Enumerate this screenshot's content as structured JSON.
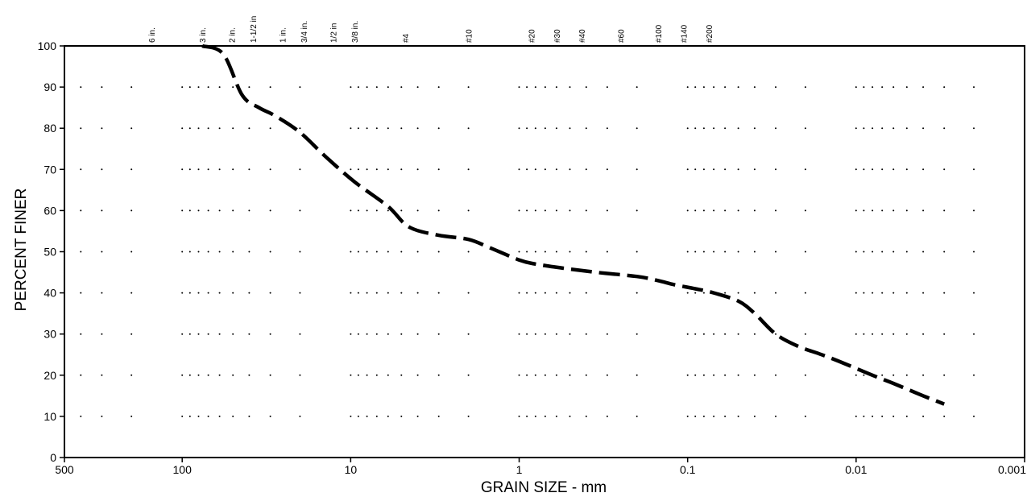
{
  "chart_data": {
    "type": "line",
    "title": "",
    "xlabel": "GRAIN SIZE - mm",
    "ylabel": "PERCENT FINER",
    "x_scale": "log",
    "x_reversed": true,
    "xlim": [
      500,
      0.001
    ],
    "ylim": [
      0,
      100
    ],
    "xticks": [
      {
        "value": 500,
        "label": "500"
      },
      {
        "value": 100,
        "label": "100"
      },
      {
        "value": 10,
        "label": "10"
      },
      {
        "value": 1,
        "label": "1"
      },
      {
        "value": 0.1,
        "label": "0.1"
      },
      {
        "value": 0.01,
        "label": "0.01"
      },
      {
        "value": 0.001,
        "label": "0.001"
      }
    ],
    "yticks": [
      0,
      10,
      20,
      30,
      40,
      50,
      60,
      70,
      80,
      90,
      100
    ],
    "grid": "dotted",
    "sieve_sizes": [
      {
        "label": "6 in.",
        "value": 152.4
      },
      {
        "label": "3 in.",
        "value": 76.2
      },
      {
        "label": "2 in.",
        "value": 50.8
      },
      {
        "label": "1-1/2 in",
        "value": 38.1
      },
      {
        "label": "1 in.",
        "value": 25.4
      },
      {
        "label": "3/4 in.",
        "value": 19.05
      },
      {
        "label": "1/2 in",
        "value": 12.7
      },
      {
        "label": "3/8 in.",
        "value": 9.525
      },
      {
        "label": "#4",
        "value": 4.75
      },
      {
        "label": "#10",
        "value": 2.0
      },
      {
        "label": "#20",
        "value": 0.85
      },
      {
        "label": "#30",
        "value": 0.6
      },
      {
        "label": "#40",
        "value": 0.425
      },
      {
        "label": "#60",
        "value": 0.25
      },
      {
        "label": "#100",
        "value": 0.15
      },
      {
        "label": "#140",
        "value": 0.106
      },
      {
        "label": "#200",
        "value": 0.075
      }
    ],
    "series": [
      {
        "line_style": "dashed",
        "color": "#000000",
        "x": [
          76,
          57,
          44,
          35,
          28,
          20,
          14,
          9.5,
          6.0,
          4.5,
          3.0,
          2.0,
          1.5,
          1.0,
          0.8,
          0.55,
          0.35,
          0.2,
          0.15,
          0.12,
          0.09,
          0.07,
          0.05,
          0.04,
          0.03,
          0.022,
          0.016,
          0.012,
          0.008,
          0.006,
          0.004,
          0.003
        ],
        "y": [
          100,
          98,
          88,
          85,
          83,
          79,
          73,
          67,
          61,
          56,
          54,
          53,
          51,
          48,
          47,
          46,
          45,
          44,
          43,
          42,
          41,
          40,
          38,
          35,
          30,
          27,
          25,
          23,
          20,
          18,
          15,
          13
        ]
      }
    ]
  }
}
